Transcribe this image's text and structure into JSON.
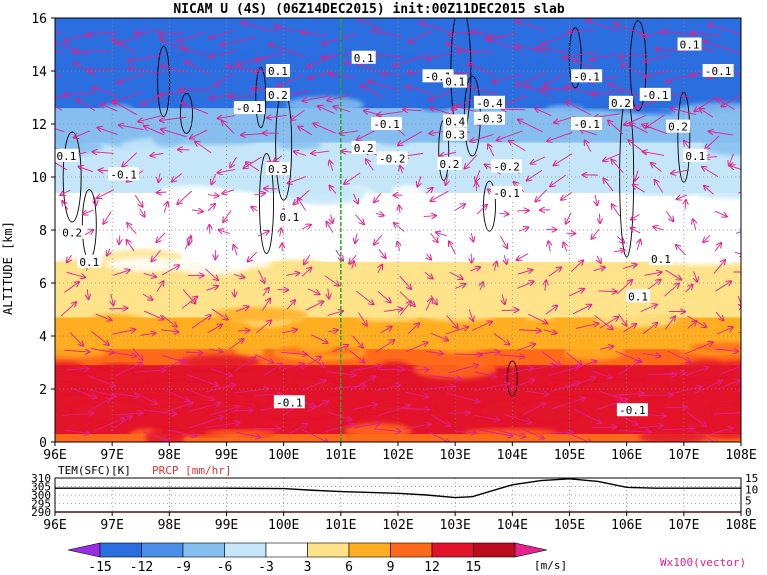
{
  "title": "NICAM U (4S) (06Z14DEC2015) init:00Z11DEC2015 slab",
  "chart_data": [
    {
      "type": "heatmap",
      "title": "NICAM U (4S) (06Z14DEC2015) init:00Z11DEC2015 slab",
      "ylabel": "ALTITUDE [km]",
      "xlim": [
        96,
        108
      ],
      "ylim": [
        0,
        16
      ],
      "x_ticks": [
        "96E",
        "97E",
        "98E",
        "99E",
        "100E",
        "101E",
        "102E",
        "103E",
        "104E",
        "105E",
        "106E",
        "107E",
        "108E"
      ],
      "y_ticks": [
        "0",
        "2",
        "4",
        "6",
        "8",
        "10",
        "12",
        "14",
        "16"
      ],
      "grid": true,
      "reference_line_x": 101,
      "reference_line_color": "#22aa22",
      "colorbar_levels": [
        "-15",
        "-12",
        "-9",
        "-6",
        "-3",
        "3",
        "6",
        "9",
        "12",
        "15"
      ],
      "colorbar_colors": [
        "#9a2de0",
        "#2a6ee0",
        "#4a90e8",
        "#86bef0",
        "#c4e6f8",
        "#ffffff",
        "#ffe38a",
        "#ffae22",
        "#ff6a1a",
        "#e3132a",
        "#bc0a1e",
        "#e6228e"
      ],
      "colorbar_unit": "[m/s]",
      "vector_label": "Wx100(vector)",
      "vector_color": "#e0208e",
      "layers": [
        {
          "from": 14.3,
          "to": 16,
          "u": -15
        },
        {
          "from": 12.6,
          "to": 14.3,
          "u": -13
        },
        {
          "from": 11.3,
          "to": 12.6,
          "u": -9
        },
        {
          "from": 10.6,
          "to": 11.3,
          "u": -6
        },
        {
          "from": 9.4,
          "to": 10.6,
          "u": -4
        },
        {
          "from": 6.8,
          "to": 9.4,
          "u": 0
        },
        {
          "from": 5.7,
          "to": 6.8,
          "u": 4
        },
        {
          "from": 4.7,
          "to": 5.7,
          "u": 5
        },
        {
          "from": 4.1,
          "to": 4.7,
          "u": 6
        },
        {
          "from": 3.5,
          "to": 4.1,
          "u": 8
        },
        {
          "from": 2.9,
          "to": 3.5,
          "u": 10
        },
        {
          "from": 2.1,
          "to": 2.9,
          "u": 12
        },
        {
          "from": 1.3,
          "to": 2.1,
          "u": 14
        },
        {
          "from": 0.3,
          "to": 1.3,
          "u": 13
        },
        {
          "from": 0,
          "to": 0.3,
          "u": 10
        }
      ],
      "contour_labels": [
        {
          "x": 96.2,
          "y": 10.8,
          "text": "0.1"
        },
        {
          "x": 96.3,
          "y": 7.9,
          "text": "0.2"
        },
        {
          "x": 96.6,
          "y": 6.8,
          "text": "0.1"
        },
        {
          "x": 97.2,
          "y": 10.1,
          "text": "-0.1"
        },
        {
          "x": 99.4,
          "y": 12.6,
          "text": "-0.1"
        },
        {
          "x": 99.9,
          "y": 14.0,
          "text": "0.1"
        },
        {
          "x": 99.9,
          "y": 13.1,
          "text": "0.2"
        },
        {
          "x": 99.9,
          "y": 10.3,
          "text": "0.3"
        },
        {
          "x": 100.1,
          "y": 8.5,
          "text": "0.1"
        },
        {
          "x": 100.1,
          "y": 1.5,
          "text": "-0.1"
        },
        {
          "x": 101.4,
          "y": 14.5,
          "text": "0.1"
        },
        {
          "x": 101.8,
          "y": 12.0,
          "text": "-0.1"
        },
        {
          "x": 101.4,
          "y": 11.1,
          "text": "0.2"
        },
        {
          "x": 101.9,
          "y": 10.7,
          "text": "-0.2"
        },
        {
          "x": 102.7,
          "y": 13.8,
          "text": "-0.1"
        },
        {
          "x": 103.0,
          "y": 13.6,
          "text": "0.1"
        },
        {
          "x": 103.6,
          "y": 12.8,
          "text": "-0.4"
        },
        {
          "x": 103.6,
          "y": 12.2,
          "text": "-0.3"
        },
        {
          "x": 103.0,
          "y": 12.1,
          "text": "0.4"
        },
        {
          "x": 103.0,
          "y": 11.6,
          "text": "0.3"
        },
        {
          "x": 102.9,
          "y": 10.5,
          "text": "0.2"
        },
        {
          "x": 103.9,
          "y": 10.4,
          "text": "-0.2"
        },
        {
          "x": 103.9,
          "y": 9.4,
          "text": "-0.1"
        },
        {
          "x": 105.3,
          "y": 13.8,
          "text": "-0.1"
        },
        {
          "x": 105.3,
          "y": 12.0,
          "text": "-0.1"
        },
        {
          "x": 105.9,
          "y": 12.8,
          "text": "0.2"
        },
        {
          "x": 106.5,
          "y": 13.1,
          "text": "-0.1"
        },
        {
          "x": 107.1,
          "y": 15.0,
          "text": "0.1"
        },
        {
          "x": 107.6,
          "y": 14.0,
          "text": "-0.1"
        },
        {
          "x": 106.9,
          "y": 11.9,
          "text": "0.2"
        },
        {
          "x": 107.2,
          "y": 10.8,
          "text": "0.1"
        },
        {
          "x": 106.6,
          "y": 6.9,
          "text": "0.1"
        },
        {
          "x": 106.2,
          "y": 5.5,
          "text": "0.1"
        },
        {
          "x": 106.1,
          "y": 1.2,
          "text": "-0.1"
        }
      ]
    },
    {
      "type": "line",
      "xlim": [
        96,
        108
      ],
      "x_ticks": [
        "96E",
        "97E",
        "98E",
        "99E",
        "100E",
        "101E",
        "102E",
        "103E",
        "104E",
        "105E",
        "106E",
        "107E",
        "108E"
      ],
      "series": [
        {
          "name": "TEM(SFC)[K]",
          "axis": "left",
          "ylim": [
            290,
            310
          ],
          "y_ticks": [
            "310",
            "305",
            "300",
            "295",
            "290"
          ],
          "color": "#000000",
          "x": [
            96,
            97,
            98,
            99,
            100,
            100.5,
            101,
            101.5,
            102,
            102.5,
            103,
            103.3,
            103.6,
            104,
            104.5,
            105,
            105.5,
            106,
            106.5,
            107,
            108
          ],
          "values": [
            304,
            304,
            304,
            304,
            303.8,
            302.8,
            302,
            301.5,
            301,
            300,
            298.5,
            299,
            302,
            306,
            308.5,
            309.5,
            308,
            304.5,
            304,
            304,
            304
          ]
        },
        {
          "name": "PRCP [mm/hr]",
          "axis": "right",
          "ylim": [
            0,
            15
          ],
          "y_ticks": [
            "15",
            "10",
            "5",
            "0"
          ],
          "color": "#e63232",
          "x": [
            96,
            108
          ],
          "values": [
            0,
            0
          ]
        }
      ]
    }
  ]
}
